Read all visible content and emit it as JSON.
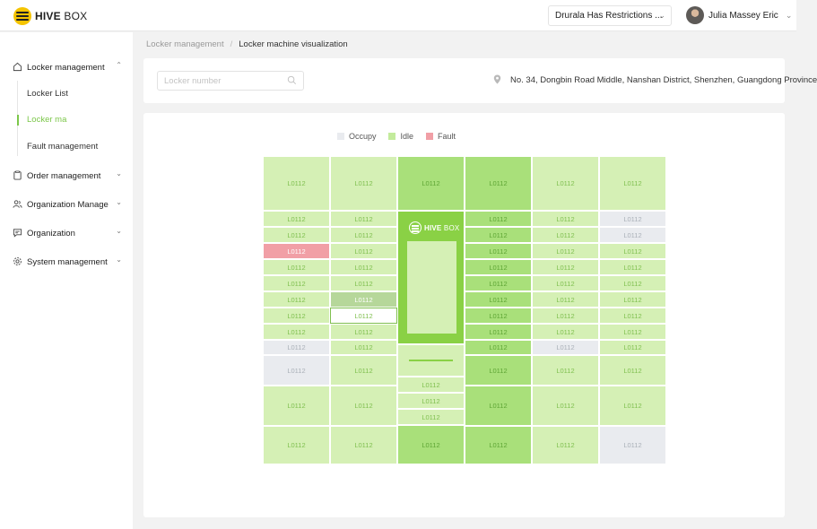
{
  "header": {
    "logo_text": "HIVE",
    "logo_text_light": "BOX",
    "tenant_select": "Drurala Has Restrictions ...",
    "user_name": "Julia Massey Eric"
  },
  "sidebar": {
    "items": [
      {
        "label": "Locker management",
        "icon": "home-icon",
        "expanded": true
      },
      {
        "label": "Order management",
        "icon": "clipboard-icon"
      },
      {
        "label": "Organization Manage",
        "icon": "users-icon"
      },
      {
        "label": "Organization",
        "icon": "message-icon"
      },
      {
        "label": "System management",
        "icon": "gear-icon"
      }
    ],
    "sub_items": [
      {
        "label": "Locker List",
        "active": false
      },
      {
        "label": "Locker ma",
        "active": true
      },
      {
        "label": "Fault management",
        "active": false
      }
    ]
  },
  "breadcrumb": {
    "parent": "Locker management",
    "separator": "/",
    "current": "Locker machine visualization"
  },
  "filter": {
    "search_placeholder": "Locker number",
    "address": "No. 34, Dongbin Road Middle, Nanshan District, Shenzhen, Guangdong Province"
  },
  "legend": [
    {
      "label": "Occupy",
      "color": "#e9ebef"
    },
    {
      "label": "Idle",
      "color": "#c3eb9c"
    },
    {
      "label": "Fault",
      "color": "#f19fa6"
    }
  ],
  "console": {
    "brand": "HIVE",
    "brand_light": "BOX"
  },
  "colors": {
    "accent": "#7cc74a",
    "idle": "#d5f0b5",
    "idle_dark_column": "#a9e07a",
    "occupy": "#e9ebef",
    "fault": "#f19fa6",
    "console": "#8ad145"
  },
  "cell_label": "L0112",
  "columns": [
    {
      "tone": "idle",
      "cells": [
        "idle",
        "idle",
        "idle",
        "fault",
        "idle",
        "idle",
        "idle",
        "idle",
        "idle",
        "occupy",
        "occupy",
        "idle",
        "idle"
      ]
    },
    {
      "tone": "idle",
      "cells": [
        "idle",
        "idle",
        "idle",
        "idle",
        "idle",
        "idle",
        "selected",
        "outlined",
        "idle",
        "idle",
        "idle",
        "idle",
        "idle"
      ]
    },
    {
      "tone": "console",
      "lower_cells": [
        "idle",
        "idle",
        "idle",
        "idle-dark"
      ]
    },
    {
      "tone": "dark",
      "cells": [
        "idle-dark",
        "idle-dark",
        "idle-dark",
        "idle-dark",
        "idle-dark",
        "idle-dark",
        "idle-dark",
        "idle-dark",
        "idle-dark",
        "idle-dark",
        "idle-dark",
        "idle-dark",
        "idle-dark"
      ]
    },
    {
      "tone": "idle",
      "cells": [
        "idle",
        "idle",
        "idle",
        "idle",
        "idle",
        "idle",
        "idle",
        "idle",
        "idle",
        "occupy",
        "idle",
        "idle",
        "idle"
      ]
    },
    {
      "tone": "idle",
      "cells": [
        "idle",
        "occupy",
        "occupy",
        "idle",
        "idle",
        "idle",
        "idle",
        "idle",
        "idle",
        "idle",
        "idle",
        "idle",
        "occupy"
      ]
    }
  ]
}
